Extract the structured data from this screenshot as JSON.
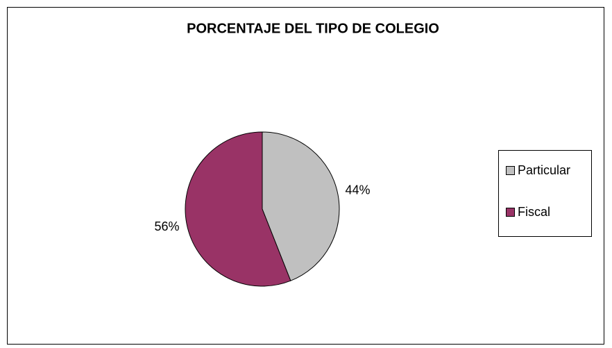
{
  "chart_data": {
    "type": "pie",
    "title": "PORCENTAJE DEL TIPO DE COLEGIO",
    "categories": [
      "Particular",
      "Fiscal"
    ],
    "values": [
      44,
      56
    ],
    "value_labels": [
      "44%",
      "56%"
    ],
    "colors": [
      "#c0c0c0",
      "#993366"
    ],
    "legend": "right"
  }
}
